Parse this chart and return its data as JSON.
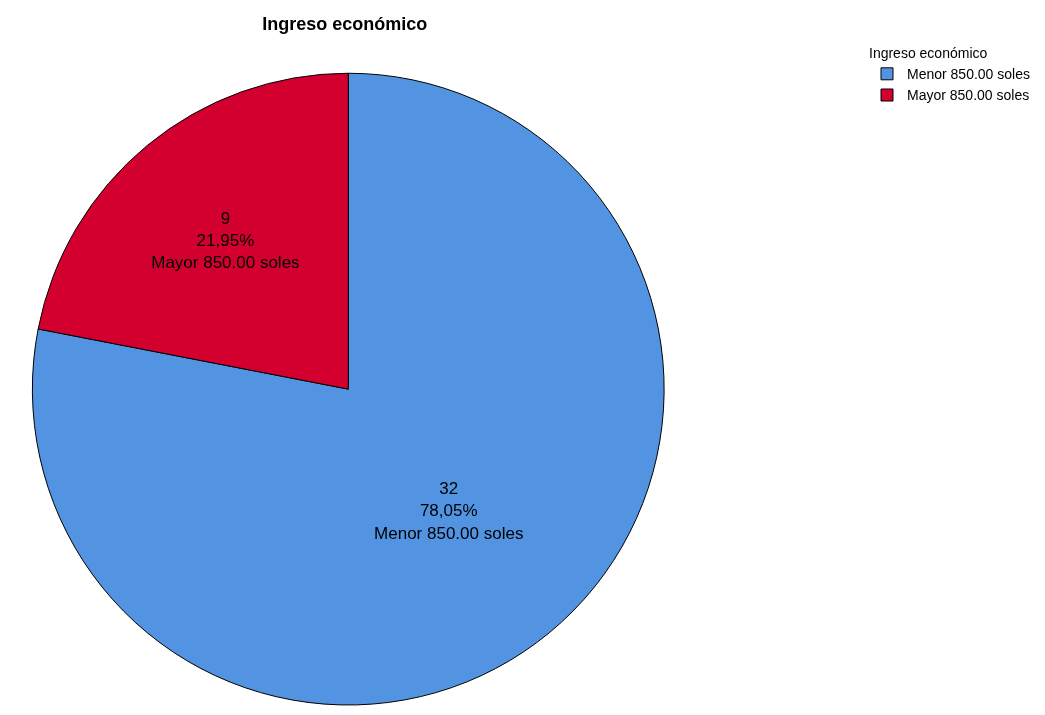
{
  "chart_data": {
    "type": "pie",
    "title": "Ingreso económico",
    "categories": [
      "Menor 850.00 soles",
      "Mayor 850.00 soles"
    ],
    "values": [
      32,
      9
    ],
    "colors": [
      "#5294e2",
      "#d3002f"
    ],
    "value_labels": [
      "32\n78,05%\nMenor 850.00 soles",
      "9\n21,95%\nMayor 850.00 soles"
    ],
    "legend_title": "Ingreso económico",
    "legend": "top right"
  }
}
